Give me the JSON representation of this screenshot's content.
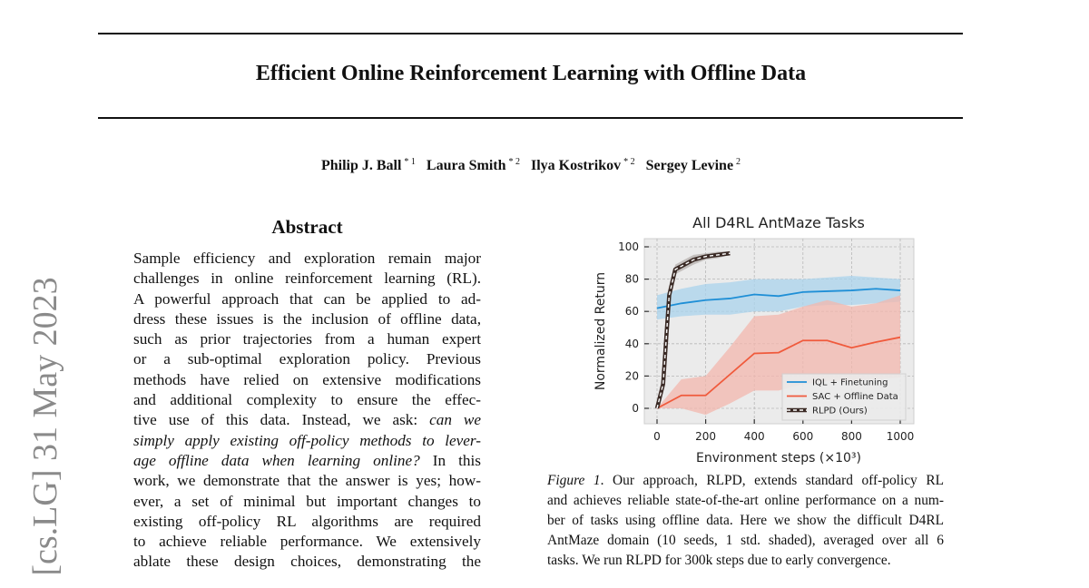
{
  "paper": {
    "title": "Efficient Online Reinforcement Learning with Offline Data",
    "authors": [
      {
        "name": "Philip J. Ball",
        "aff": "* 1"
      },
      {
        "name": "Laura Smith",
        "aff": "* 2"
      },
      {
        "name": "Ilya Kostrikov",
        "aff": "* 2"
      },
      {
        "name": "Sergey Levine",
        "aff": "2"
      }
    ],
    "arxiv_stamp": "[cs.LG]  31 May 2023",
    "abstract_heading": "Abstract",
    "abstract_lines": [
      [
        {
          "t": "Sample efficiency and exploration remain major"
        }
      ],
      [
        {
          "t": "challenges in online reinforcement learning (RL)."
        }
      ],
      [
        {
          "t": "A powerful approach that can be applied to ad-"
        }
      ],
      [
        {
          "t": "dress these issues is the inclusion of offline data,"
        }
      ],
      [
        {
          "t": "such as prior trajectories from a human expert"
        }
      ],
      [
        {
          "t": "or a sub-optimal exploration policy.  Previous"
        }
      ],
      [
        {
          "t": "methods have relied on extensive modifications"
        }
      ],
      [
        {
          "t": "and additional complexity to ensure the effec-"
        }
      ],
      [
        {
          "t": "tive use of this data.  Instead, we ask: "
        },
        {
          "t": "can we",
          "i": true
        }
      ],
      [
        {
          "t": "simply apply existing off-policy methods to lever-",
          "i": true
        }
      ],
      [
        {
          "t": "age offline data when learning online?",
          "i": true
        },
        {
          "t": "  In this"
        }
      ],
      [
        {
          "t": "work, we demonstrate that the answer is yes; how-"
        }
      ],
      [
        {
          "t": "ever, a set of minimal but important changes to"
        }
      ],
      [
        {
          "t": "existing off-policy RL algorithms are required"
        }
      ],
      [
        {
          "t": "to achieve reliable performance. We extensively"
        }
      ],
      [
        {
          "t": "ablate these design choices, demonstrating the"
        }
      ]
    ],
    "caption_lines": [
      [
        {
          "t": "Figure 1",
          "i": true
        },
        {
          "t": ". Our approach, RLPD, extends standard off-policy RL"
        }
      ],
      [
        {
          "t": "and achieves reliable state-of-the-art online performance on a num-"
        }
      ],
      [
        {
          "t": "ber of tasks using offline data. Here we show the difficult D4RL"
        }
      ],
      [
        {
          "t": "AntMaze domain (10 seeds, 1 std.  shaded), averaged over all 6"
        }
      ],
      [
        {
          "t": "tasks. We run RLPD for 300k steps due to early convergence."
        }
      ]
    ]
  },
  "chart_data": {
    "type": "line",
    "title": "All D4RL AntMaze Tasks",
    "xlabel": "Environment steps (×10³)",
    "ylabel": "Normalized Return",
    "xlim": [
      -80,
      1070
    ],
    "ylim": [
      -7,
      105
    ],
    "xticks": [
      0,
      200,
      400,
      600,
      800,
      1000
    ],
    "yticks": [
      0,
      20,
      40,
      60,
      80,
      100
    ],
    "grid": true,
    "legend_position": "bottom-right",
    "series": [
      {
        "name": "IQL + Finetuning",
        "color": "#1f8fd6",
        "band_color": "#a9d3ec",
        "x": [
          0,
          100,
          200,
          300,
          400,
          500,
          600,
          700,
          800,
          900,
          1000
        ],
        "y": [
          62,
          65,
          67,
          68,
          70.5,
          69.5,
          72,
          72.5,
          73,
          74,
          73
        ],
        "lower": [
          55,
          57,
          58,
          58,
          60,
          60,
          63,
          64,
          64,
          65,
          66
        ],
        "upper": [
          70,
          74,
          77,
          78,
          80,
          80,
          80,
          81,
          82,
          81,
          80
        ]
      },
      {
        "name": "SAC + Offline Data",
        "color": "#f05a3c",
        "band_color": "#f3b7ad",
        "x": [
          0,
          100,
          200,
          300,
          400,
          500,
          600,
          700,
          800,
          900,
          1000
        ],
        "y": [
          0,
          8,
          8,
          21,
          34,
          34.5,
          42,
          42,
          37.5,
          41,
          44
        ],
        "lower": [
          0,
          0,
          -4,
          3,
          11,
          11,
          15,
          17,
          17,
          18,
          19
        ],
        "upper": [
          0,
          18,
          20,
          38,
          57,
          58,
          63,
          67,
          63,
          65,
          70
        ]
      },
      {
        "name": "RLPD (Ours)",
        "color": "#3a2a25",
        "band_color": "#b5b0ad",
        "x": [
          0,
          25,
          50,
          75,
          100,
          150,
          200,
          250,
          300
        ],
        "y": [
          0,
          15,
          70,
          86,
          88,
          92,
          94,
          95,
          96
        ],
        "lower": [
          0,
          13,
          66,
          83,
          85,
          89,
          92,
          93,
          95
        ],
        "upper": [
          0,
          17,
          74,
          89,
          91,
          95,
          96,
          97,
          97
        ]
      }
    ]
  }
}
